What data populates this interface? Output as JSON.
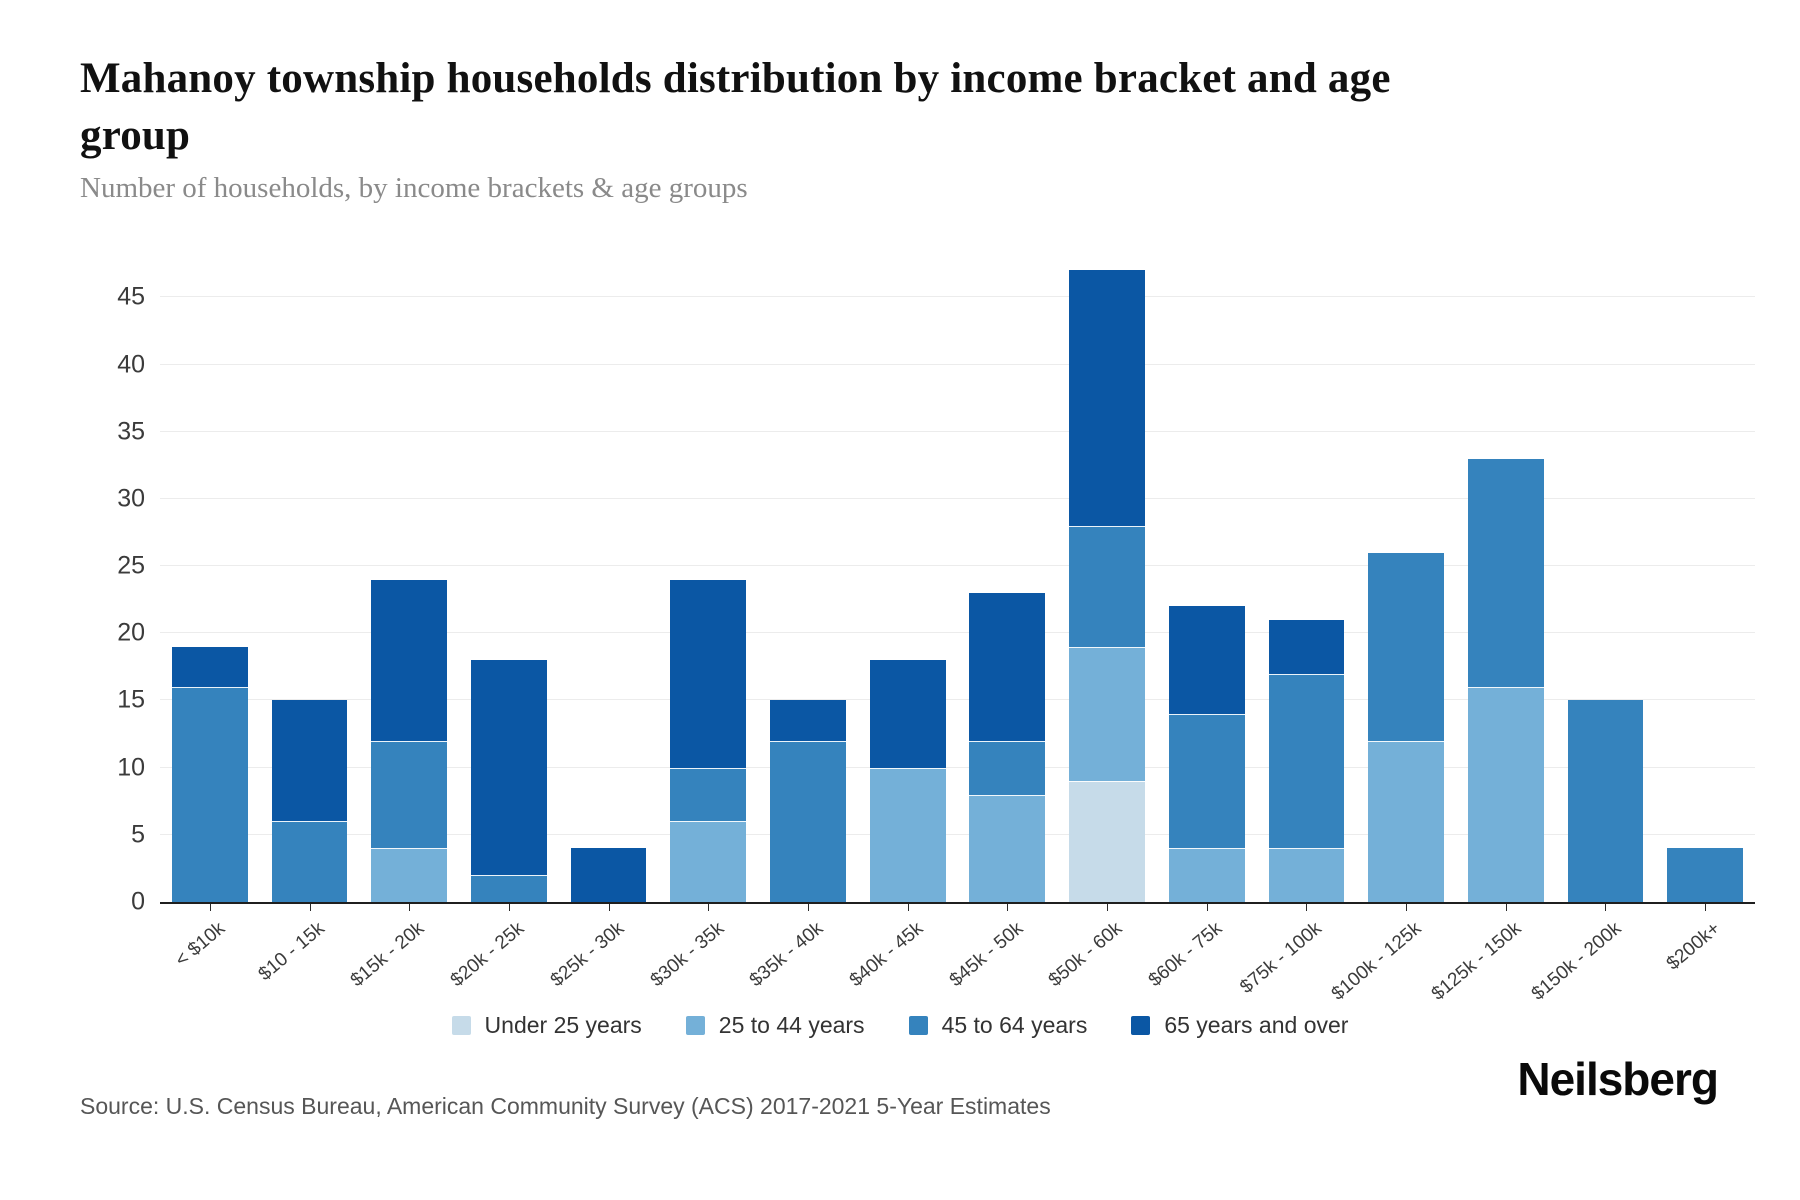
{
  "title": {
    "line1": "Mahanoy township households distribution by income bracket and age",
    "line2": "group"
  },
  "subtitle": "Number of households, by income brackets & age groups",
  "source": "Source: U.S. Census Bureau, American Community Survey (ACS) 2017-2021 5-Year Estimates",
  "logo": "Neilsberg",
  "chart_data": {
    "type": "bar",
    "stacked": true,
    "title": "Mahanoy township households distribution by income bracket and age group",
    "subtitle": "Number of households, by income brackets & age groups",
    "categories": [
      "< $10k",
      "$10 - 15k",
      "$15k - 20k",
      "$20k - 25k",
      "$25k - 30k",
      "$30k - 35k",
      "$35k - 40k",
      "$40k - 45k",
      "$45k - 50k",
      "$50k - 60k",
      "$60k - 75k",
      "$75k - 100k",
      "$100k - 125k",
      "$125k - 150k",
      "$150k - 200k",
      "$200k+"
    ],
    "series": [
      {
        "name": "Under 25 years",
        "color": "#c6dbe9",
        "values": [
          0,
          0,
          0,
          0,
          0,
          0,
          0,
          0,
          0,
          9,
          0,
          0,
          0,
          0,
          0,
          0
        ]
      },
      {
        "name": "25 to 44 years",
        "color": "#74b0d8",
        "values": [
          0,
          0,
          4,
          0,
          0,
          6,
          0,
          10,
          8,
          10,
          4,
          4,
          12,
          16,
          0,
          0
        ]
      },
      {
        "name": "45 to 64 years",
        "color": "#3583bd",
        "values": [
          16,
          6,
          8,
          2,
          0,
          4,
          12,
          0,
          4,
          9,
          10,
          13,
          14,
          17,
          15,
          4
        ]
      },
      {
        "name": "65 years and over",
        "color": "#0b57a4",
        "values": [
          3,
          9,
          12,
          16,
          4,
          14,
          3,
          8,
          11,
          19,
          8,
          4,
          0,
          0,
          0,
          0
        ]
      }
    ],
    "totals": [
      19,
      15,
      24,
      18,
      4,
      24,
      15,
      18,
      23,
      47,
      22,
      21,
      26,
      33,
      15,
      4
    ],
    "xlabel": "",
    "ylabel": "",
    "ylim": [
      0,
      48
    ],
    "yticks": [
      0,
      5,
      10,
      15,
      20,
      25,
      30,
      35,
      40,
      45
    ],
    "grid": "horizontal",
    "legend_position": "bottom",
    "axis_color": "#1f1f1f",
    "gridline_color": "#ececec"
  }
}
